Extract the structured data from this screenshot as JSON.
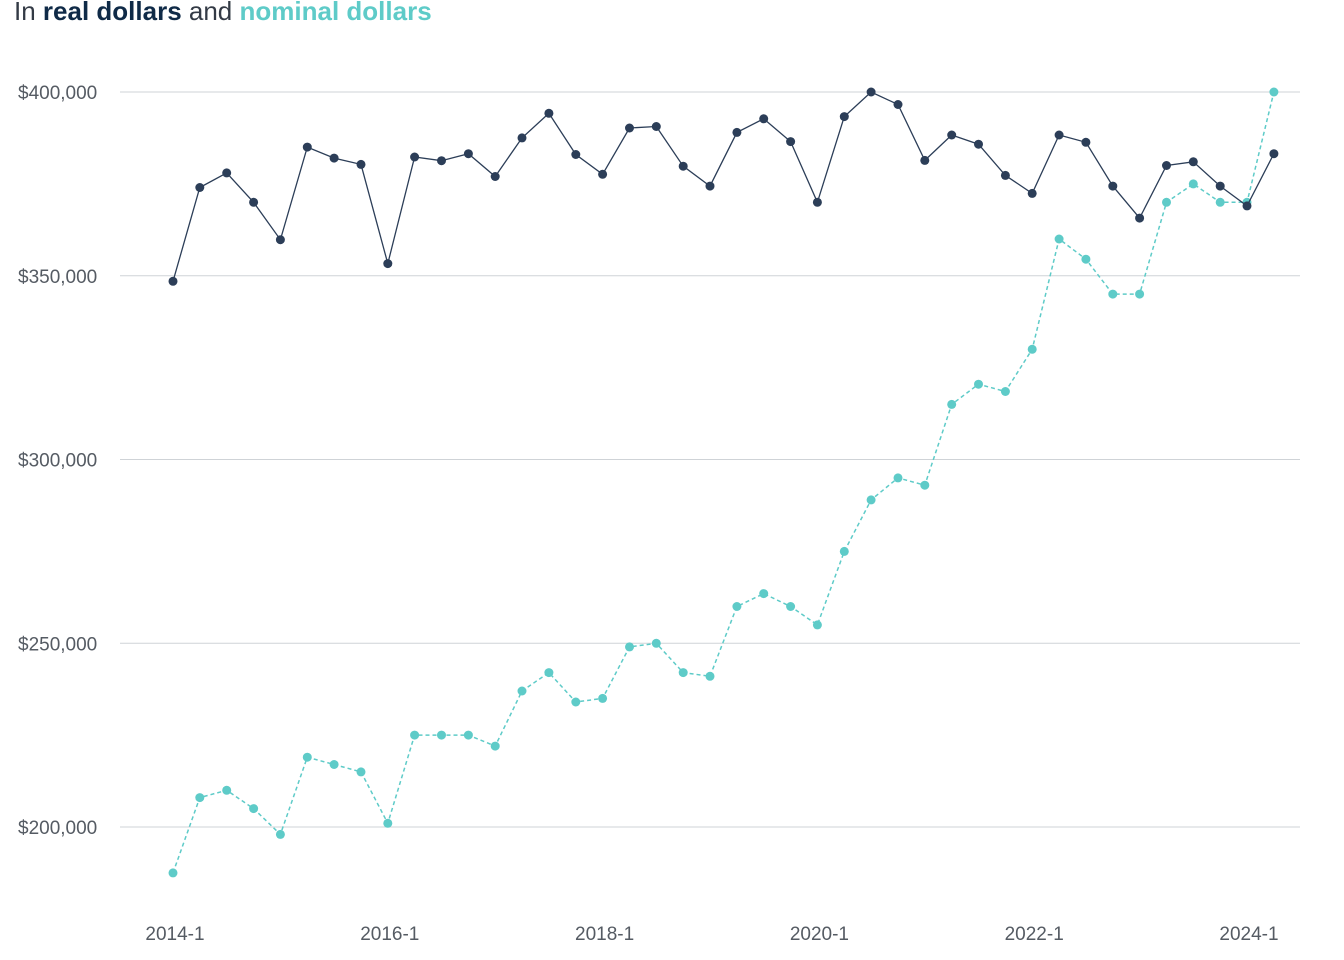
{
  "subtitle": {
    "prefix": "In",
    "series_a": "real dollars",
    "joiner": "and",
    "series_b": "nominal dollars"
  },
  "colors": {
    "real": "#2c3e58",
    "nominal": "#5ecbc8",
    "grid": "#cfd3d7",
    "text": "#555b63"
  },
  "chart_data": {
    "type": "line",
    "title": "",
    "xlabel": "",
    "ylabel": "",
    "ylim": [
      180000,
      400000
    ],
    "yticks": [
      200000,
      250000,
      300000,
      350000,
      400000
    ],
    "ytick_labels": [
      "$200,000",
      "$250,000",
      "$300,000",
      "$350,000",
      "$400,000"
    ],
    "xtick_labels": [
      "2014-1",
      "2016-1",
      "2018-1",
      "2020-1",
      "2022-1",
      "2024-1"
    ],
    "x": [
      "2014-1",
      "2014-2",
      "2014-3",
      "2014-4",
      "2015-1",
      "2015-2",
      "2015-3",
      "2015-4",
      "2016-1",
      "2016-2",
      "2016-3",
      "2016-4",
      "2017-1",
      "2017-2",
      "2017-3",
      "2017-4",
      "2018-1",
      "2018-2",
      "2018-3",
      "2018-4",
      "2019-1",
      "2019-2",
      "2019-3",
      "2019-4",
      "2020-1",
      "2020-2",
      "2020-3",
      "2020-4",
      "2021-1",
      "2021-2",
      "2021-3",
      "2021-4",
      "2022-1",
      "2022-2",
      "2022-3",
      "2022-4",
      "2023-1",
      "2023-2",
      "2023-3",
      "2023-4",
      "2024-1",
      "2024-2"
    ],
    "series": [
      {
        "name": "real dollars",
        "style": "solid",
        "values": [
          348500,
          374000,
          378000,
          370000,
          359800,
          385000,
          382000,
          380300,
          353300,
          382300,
          381300,
          383200,
          377000,
          387500,
          394200,
          383000,
          377600,
          390200,
          390600,
          379800,
          374400,
          389000,
          392700,
          386500,
          370000,
          393300,
          400000,
          396600,
          381400,
          388300,
          385800,
          377300,
          372400,
          388300,
          386300,
          374400,
          365700,
          380000,
          381000,
          374400,
          369000,
          383200
        ]
      },
      {
        "name": "nominal dollars",
        "style": "dashed",
        "values": [
          187500,
          208000,
          210000,
          205000,
          198000,
          219000,
          217000,
          215000,
          201000,
          225000,
          225000,
          225000,
          222000,
          237000,
          242000,
          234000,
          235000,
          249000,
          250000,
          242000,
          241000,
          260000,
          263500,
          260000,
          255000,
          275000,
          289000,
          295000,
          293000,
          315000,
          320500,
          318500,
          330000,
          360000,
          354500,
          345000,
          345000,
          370000,
          375000,
          370000,
          370000,
          400000
        ]
      }
    ],
    "grid": true,
    "legend": "subtitle"
  }
}
